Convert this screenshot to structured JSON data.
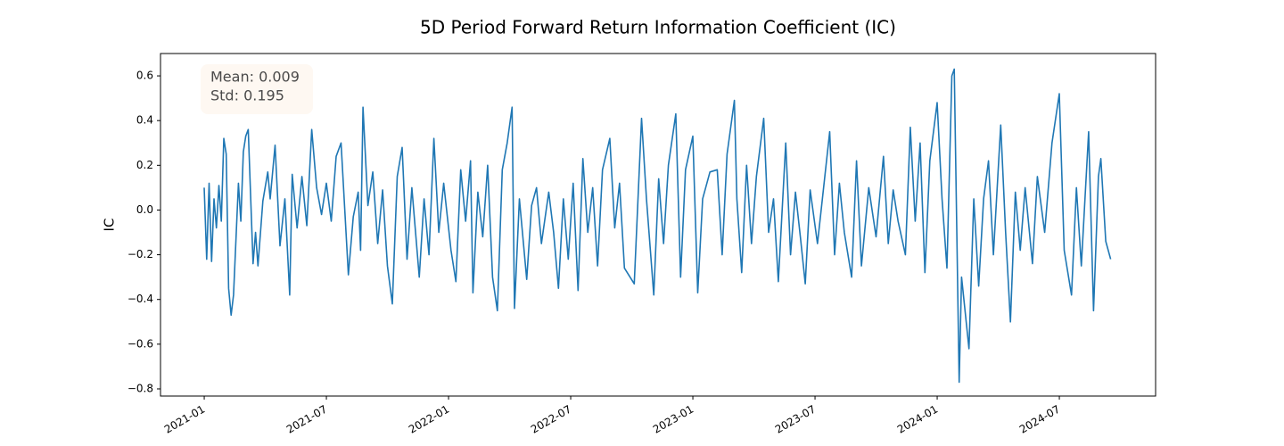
{
  "chart_data": {
    "type": "line",
    "title": "5D Period Forward Return Information Coefficient (IC)",
    "ylabel": "IC",
    "annotations": [
      "Mean: 0.009",
      "Std: 0.195"
    ],
    "color": "#1f77b4",
    "xlim": [
      2020.821,
      2024.894
    ],
    "xticks": [
      {
        "value": 2021.0,
        "label": "2021-01"
      },
      {
        "value": 2021.5,
        "label": "2021-07"
      },
      {
        "value": 2022.0,
        "label": "2022-01"
      },
      {
        "value": 2022.5,
        "label": "2022-07"
      },
      {
        "value": 2023.0,
        "label": "2023-01"
      },
      {
        "value": 2023.5,
        "label": "2023-07"
      },
      {
        "value": 2024.0,
        "label": "2024-01"
      },
      {
        "value": 2024.5,
        "label": "2024-07"
      }
    ],
    "ylim": [
      -0.832,
      0.7
    ],
    "yticks": [
      {
        "value": -0.8,
        "label": "−0.8"
      },
      {
        "value": -0.6,
        "label": "−0.6"
      },
      {
        "value": -0.4,
        "label": "−0.4"
      },
      {
        "value": -0.2,
        "label": "−0.2"
      },
      {
        "value": 0,
        "label": "0.0"
      },
      0.2,
      0.4,
      0.6
    ],
    "x": [
      2021.0,
      2021.01,
      2021.02,
      2021.03,
      2021.04,
      2021.05,
      2021.06,
      2021.07,
      2021.08,
      2021.09,
      2021.1,
      2021.11,
      2021.12,
      2021.14,
      2021.15,
      2021.16,
      2021.17,
      2021.18,
      2021.2,
      2021.21,
      2021.22,
      2021.24,
      2021.26,
      2021.27,
      2021.29,
      2021.31,
      2021.33,
      2021.35,
      2021.36,
      2021.38,
      2021.4,
      2021.42,
      2021.44,
      2021.46,
      2021.48,
      2021.5,
      2021.52,
      2021.54,
      2021.56,
      2021.59,
      2021.61,
      2021.63,
      2021.64,
      2021.65,
      2021.67,
      2021.69,
      2021.71,
      2021.73,
      2021.75,
      2021.77,
      2021.79,
      2021.81,
      2021.83,
      2021.85,
      2021.88,
      2021.9,
      2021.92,
      2021.94,
      2021.96,
      2021.98,
      2022.01,
      2022.03,
      2022.05,
      2022.07,
      2022.09,
      2022.1,
      2022.12,
      2022.14,
      2022.16,
      2022.18,
      2022.2,
      2022.22,
      2022.24,
      2022.26,
      2022.27,
      2022.29,
      2022.32,
      2022.34,
      2022.36,
      2022.38,
      2022.41,
      2022.43,
      2022.45,
      2022.47,
      2022.49,
      2022.51,
      2022.53,
      2022.55,
      2022.57,
      2022.59,
      2022.61,
      2022.63,
      2022.66,
      2022.68,
      2022.7,
      2022.72,
      2022.76,
      2022.79,
      2022.81,
      2022.84,
      2022.86,
      2022.88,
      2022.9,
      2022.93,
      2022.95,
      2022.97,
      2023.0,
      2023.02,
      2023.04,
      2023.07,
      2023.1,
      2023.12,
      2023.14,
      2023.17,
      2023.18,
      2023.2,
      2023.22,
      2023.24,
      2023.26,
      2023.29,
      2023.31,
      2023.33,
      2023.35,
      2023.38,
      2023.4,
      2023.42,
      2023.44,
      2023.46,
      2023.48,
      2023.51,
      2023.53,
      2023.56,
      2023.58,
      2023.6,
      2023.62,
      2023.65,
      2023.67,
      2023.69,
      2023.72,
      2023.75,
      2023.78,
      2023.8,
      2023.82,
      2023.84,
      2023.87,
      2023.89,
      2023.91,
      2023.93,
      2023.95,
      2023.97,
      2024.0,
      2024.02,
      2024.04,
      2024.06,
      2024.07,
      2024.09,
      2024.1,
      2024.13,
      2024.15,
      2024.17,
      2024.19,
      2024.21,
      2024.23,
      2024.26,
      2024.28,
      2024.3,
      2024.32,
      2024.34,
      2024.36,
      2024.39,
      2024.41,
      2024.44,
      2024.47,
      2024.5,
      2024.52,
      2024.55,
      2024.57,
      2024.59,
      2024.62,
      2024.64,
      2024.66,
      2024.67,
      2024.69,
      2024.71
    ],
    "values": [
      0.1,
      -0.22,
      0.12,
      -0.23,
      0.05,
      -0.08,
      0.11,
      -0.05,
      0.32,
      0.25,
      -0.35,
      -0.47,
      -0.38,
      0.12,
      -0.05,
      0.26,
      0.33,
      0.36,
      -0.24,
      -0.1,
      -0.25,
      0.04,
      0.17,
      0.05,
      0.29,
      -0.16,
      0.05,
      -0.38,
      0.16,
      -0.08,
      0.15,
      -0.07,
      0.36,
      0.1,
      -0.02,
      0.12,
      -0.05,
      0.24,
      0.3,
      -0.29,
      -0.03,
      0.08,
      -0.18,
      0.46,
      0.02,
      0.17,
      -0.15,
      0.09,
      -0.25,
      -0.42,
      0.15,
      0.28,
      -0.22,
      0.1,
      -0.3,
      0.05,
      -0.2,
      0.32,
      -0.1,
      0.12,
      -0.18,
      -0.32,
      0.18,
      -0.05,
      0.22,
      -0.37,
      0.08,
      -0.12,
      0.2,
      -0.3,
      -0.45,
      0.18,
      0.3,
      0.46,
      -0.44,
      0.05,
      -0.31,
      0.02,
      0.1,
      -0.15,
      0.08,
      -0.1,
      -0.35,
      0.05,
      -0.22,
      0.12,
      -0.36,
      0.23,
      -0.1,
      0.1,
      -0.25,
      0.18,
      0.32,
      -0.08,
      0.12,
      -0.26,
      -0.33,
      0.41,
      0.05,
      -0.38,
      0.14,
      -0.15,
      0.2,
      0.43,
      -0.3,
      0.18,
      0.33,
      -0.37,
      0.05,
      0.17,
      0.18,
      -0.2,
      0.25,
      0.49,
      0.05,
      -0.28,
      0.2,
      -0.15,
      0.15,
      0.41,
      -0.1,
      0.05,
      -0.32,
      0.3,
      -0.2,
      0.08,
      -0.12,
      -0.33,
      0.09,
      -0.15,
      0.05,
      0.35,
      -0.2,
      0.12,
      -0.1,
      -0.3,
      0.22,
      -0.25,
      0.1,
      -0.12,
      0.24,
      -0.15,
      0.09,
      -0.05,
      -0.2,
      0.37,
      -0.05,
      0.3,
      -0.28,
      0.22,
      0.48,
      0.05,
      -0.26,
      0.6,
      0.63,
      -0.77,
      -0.3,
      -0.62,
      0.05,
      -0.34,
      0.05,
      0.22,
      -0.2,
      0.38,
      -0.1,
      -0.5,
      0.08,
      -0.18,
      0.1,
      -0.24,
      0.15,
      -0.1,
      0.3,
      0.52,
      -0.18,
      -0.38,
      0.1,
      -0.25,
      0.35,
      -0.45,
      0.15,
      0.23,
      -0.14,
      -0.22
    ]
  }
}
